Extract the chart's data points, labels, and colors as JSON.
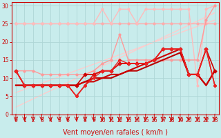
{
  "xlabel": "Vent moyen/en rafales ( km/h )",
  "xlim": [
    -0.5,
    23.5
  ],
  "ylim": [
    0,
    31
  ],
  "xticks": [
    0,
    1,
    2,
    3,
    4,
    5,
    6,
    7,
    8,
    9,
    10,
    11,
    12,
    13,
    14,
    15,
    16,
    17,
    18,
    19,
    20,
    21,
    22,
    23
  ],
  "yticks": [
    0,
    5,
    10,
    15,
    20,
    25,
    30
  ],
  "background_color": "#c8ecec",
  "grid_color": "#aed6d6",
  "lines": [
    {
      "x": [
        0,
        1,
        2,
        3,
        4,
        5,
        6,
        7,
        8,
        9,
        10,
        11,
        12,
        13,
        14,
        15,
        16,
        17,
        18,
        19,
        20,
        21,
        22,
        23
      ],
      "y": [
        25,
        25,
        25,
        25,
        25,
        25,
        25,
        25,
        25,
        25,
        25,
        25,
        25,
        25,
        25,
        25,
        25,
        25,
        25,
        25,
        25,
        25,
        25,
        25
      ],
      "color": "#ffaaaa",
      "lw": 1.0,
      "marker": "o",
      "ms": 2.0,
      "zorder": 2
    },
    {
      "x": [
        0,
        1,
        2,
        3,
        4,
        5,
        6,
        7,
        8,
        9,
        10,
        11,
        12,
        13,
        14,
        15,
        16,
        17,
        18,
        19,
        20,
        21,
        22,
        23
      ],
      "y": [
        25,
        25,
        25,
        25,
        25,
        25,
        25,
        25,
        25,
        25,
        29,
        25,
        29,
        29,
        25,
        29,
        29,
        29,
        29,
        29,
        29,
        8,
        29,
        30
      ],
      "color": "#ffbbbb",
      "lw": 1.0,
      "marker": "o",
      "ms": 2.0,
      "zorder": 2
    },
    {
      "x": [
        0,
        23
      ],
      "y": [
        6,
        26
      ],
      "color": "#ffcccc",
      "lw": 1.0,
      "marker": null,
      "ms": 0,
      "zorder": 1
    },
    {
      "x": [
        0,
        23
      ],
      "y": [
        2,
        28
      ],
      "color": "#ffcccc",
      "lw": 1.0,
      "marker": null,
      "ms": 0,
      "zorder": 1
    },
    {
      "x": [
        0,
        1,
        2,
        3,
        4,
        5,
        6,
        7,
        8,
        9,
        10,
        11,
        12,
        13,
        14,
        15,
        16,
        17,
        18,
        19,
        20,
        21,
        22,
        23
      ],
      "y": [
        12,
        12,
        12,
        11,
        11,
        11,
        11,
        11,
        11,
        12,
        14,
        15,
        22,
        15,
        15,
        15,
        15,
        15,
        15,
        15,
        15,
        15,
        26,
        30
      ],
      "color": "#ff9999",
      "lw": 1.0,
      "marker": "o",
      "ms": 2.0,
      "zorder": 3
    },
    {
      "x": [
        0,
        1,
        2,
        3,
        4,
        5,
        6,
        7,
        8,
        9,
        10,
        11,
        12,
        13,
        14,
        15,
        16,
        17,
        18,
        19,
        20,
        21,
        22,
        23
      ],
      "y": [
        12,
        8,
        8,
        8,
        8,
        8,
        8,
        8,
        11,
        11,
        12,
        12,
        14,
        14,
        14,
        14,
        15,
        18,
        18,
        18,
        11,
        11,
        18,
        12
      ],
      "color": "#cc0000",
      "lw": 1.2,
      "marker": "D",
      "ms": 2.5,
      "zorder": 5
    },
    {
      "x": [
        0,
        1,
        2,
        3,
        4,
        5,
        6,
        7,
        8,
        9,
        10,
        11,
        12,
        13,
        14,
        15,
        16,
        17,
        18,
        19,
        20,
        21,
        22,
        23
      ],
      "y": [
        12,
        8,
        8,
        8,
        8,
        8,
        8,
        5,
        8,
        11,
        12,
        12,
        14,
        14,
        14,
        14,
        15,
        18,
        18,
        18,
        11,
        11,
        18,
        8
      ],
      "color": "#dd1111",
      "lw": 1.2,
      "marker": "D",
      "ms": 2.0,
      "zorder": 5
    },
    {
      "x": [
        0,
        1,
        2,
        3,
        4,
        5,
        6,
        7,
        8,
        9,
        10,
        11,
        12,
        13,
        14,
        15,
        16,
        17,
        18,
        19,
        20,
        21,
        22,
        23
      ],
      "y": [
        8,
        8,
        8,
        8,
        8,
        8,
        8,
        8,
        9,
        10,
        10,
        10,
        11,
        12,
        12,
        13,
        14,
        15,
        16,
        17,
        11,
        11,
        8,
        12
      ],
      "color": "#bb0000",
      "lw": 1.5,
      "marker": null,
      "ms": 0,
      "zorder": 4
    },
    {
      "x": [
        0,
        1,
        2,
        3,
        4,
        5,
        6,
        7,
        8,
        9,
        10,
        11,
        12,
        13,
        14,
        15,
        16,
        17,
        18,
        19,
        20,
        21,
        22,
        23
      ],
      "y": [
        8,
        8,
        8,
        8,
        8,
        8,
        8,
        8,
        9,
        9,
        10,
        11,
        11,
        12,
        13,
        14,
        15,
        16,
        17,
        18,
        11,
        11,
        8,
        12
      ],
      "color": "#cc0000",
      "lw": 1.5,
      "marker": null,
      "ms": 0,
      "zorder": 4
    },
    {
      "x": [
        0,
        1,
        2,
        3,
        4,
        5,
        6,
        7,
        8,
        9,
        10,
        11,
        12,
        13,
        14,
        15,
        16,
        17,
        18,
        19,
        20,
        21,
        22,
        23
      ],
      "y": [
        12,
        8,
        8,
        8,
        8,
        8,
        8,
        5,
        8,
        10,
        12,
        12,
        15,
        14,
        14,
        14,
        15,
        18,
        18,
        18,
        11,
        11,
        18,
        8
      ],
      "color": "#ee2222",
      "lw": 1.0,
      "marker": "D",
      "ms": 2.0,
      "zorder": 5
    }
  ],
  "arrow_color": "#cc0000",
  "tick_fontsize": 5.5,
  "xlabel_fontsize": 7
}
